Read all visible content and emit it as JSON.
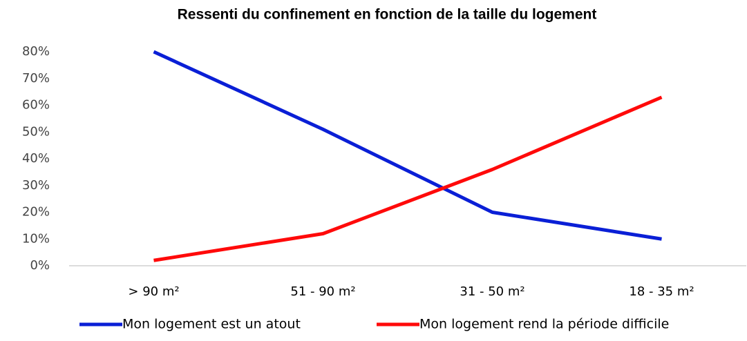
{
  "chart_data": {
    "type": "line",
    "title": "Ressenti du confinement en fonction de la taille du logement",
    "categories": [
      "> 90 m²",
      "51 - 90 m²",
      "31 - 50 m²",
      "18 - 35 m²"
    ],
    "series": [
      {
        "name": "Mon logement est un atout",
        "color": "#0a1fd6",
        "values": [
          80,
          51,
          20,
          10
        ]
      },
      {
        "name": "Mon logement rend la période difficile",
        "color": "#ff0a0a",
        "values": [
          2,
          12,
          36,
          63
        ]
      }
    ],
    "ylim": [
      0,
      80
    ],
    "yticks": [
      {
        "value": 0,
        "label": "0%"
      },
      {
        "value": 10,
        "label": "10%"
      },
      {
        "value": 20,
        "label": "20%"
      },
      {
        "value": 30,
        "label": "30%"
      },
      {
        "value": 40,
        "label": "40%"
      },
      {
        "value": 50,
        "label": "50%"
      },
      {
        "value": 60,
        "label": "60%"
      },
      {
        "value": 70,
        "label": "70%"
      },
      {
        "value": 80,
        "label": "80%"
      }
    ],
    "grid": false,
    "legend": "bottom"
  }
}
